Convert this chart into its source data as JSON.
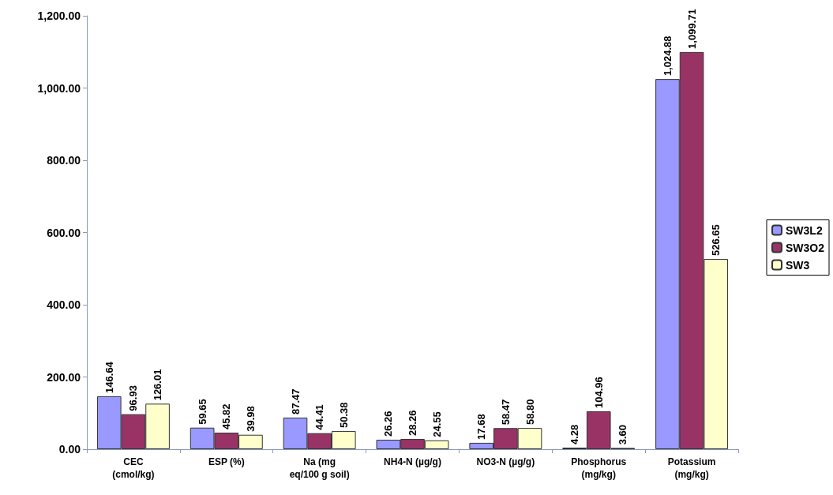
{
  "chart_data": {
    "type": "bar",
    "categories": [
      "CEC\n(cmol/kg)",
      "ESP (%)",
      "Na (mg\neq/100 g soil)",
      "NH4-N (µg/g)",
      "NO3-N (µg/g)",
      "Phosphorus\n(mg/kg)",
      "Potassium\n(mg/kg)"
    ],
    "series": [
      {
        "name": "SW3L2",
        "color": "#9999ff",
        "values": [
          146.64,
          59.65,
          87.47,
          26.26,
          17.68,
          4.28,
          1024.88
        ],
        "value_labels": [
          "146.64",
          "59.65",
          "87.47",
          "26.26",
          "17.68",
          "4.28",
          "1,024.88"
        ]
      },
      {
        "name": "SW3O2",
        "color": "#993366",
        "values": [
          96.93,
          45.82,
          44.41,
          28.26,
          58.47,
          104.96,
          1099.71
        ],
        "value_labels": [
          "96.93",
          "45.82",
          "44.41",
          "28.26",
          "58.47",
          "104.96",
          "1,099.71"
        ]
      },
      {
        "name": "SW3",
        "color": "#ffffcc",
        "values": [
          126.01,
          39.98,
          50.38,
          24.55,
          58.8,
          3.6,
          526.65
        ],
        "value_labels": [
          "126.01",
          "39.98",
          "50.38",
          "24.55",
          "58.80",
          "3.60",
          "526.65"
        ]
      }
    ],
    "ylim": [
      0,
      1200
    ],
    "yticks": [
      {
        "value": 0,
        "label": "0.00"
      },
      {
        "value": 200,
        "label": "200.00"
      },
      {
        "value": 400,
        "label": "400.00"
      },
      {
        "value": 600,
        "label": "600.00"
      },
      {
        "value": 800,
        "label": "800.00"
      },
      {
        "value": 1000,
        "label": "1,000.00"
      },
      {
        "value": 1200,
        "label": "1,200.00"
      }
    ],
    "grid": false,
    "legend": "right"
  }
}
